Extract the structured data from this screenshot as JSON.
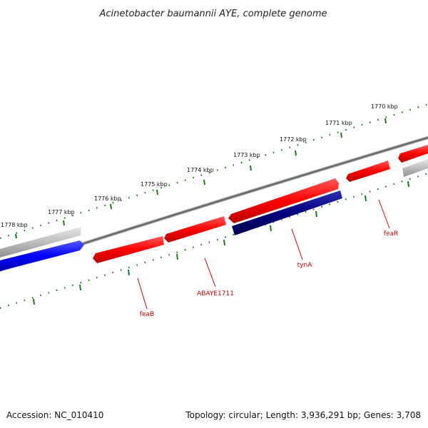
{
  "title": "Acinetobacter baumannii AYE, complete genome",
  "footer": {
    "accession": "Accession: NC_010410",
    "summary": "Topology: circular; Length: 3,936,291 bp; Genes: 3,708"
  },
  "ruler": {
    "ticks": [
      "1778 kbp",
      "1777 kbp",
      "1776 kbp",
      "1775 kbp",
      "1774 kbp",
      "1773 kbp",
      "1772 kbp",
      "1771 kbp",
      "1770 kbp"
    ]
  },
  "genes": [
    {
      "name": "feaB",
      "color": "#ff0000"
    },
    {
      "name": "ABAYE1711",
      "color": "#ff0000"
    },
    {
      "name": "tynA",
      "color": "#000080"
    },
    {
      "name": "feaR",
      "color": "#ff0000"
    }
  ],
  "colors": {
    "forward_gene": "#ff0000",
    "reverse_gene": "#000080",
    "other_gene_blue": "#0000ff",
    "other_gene_grey": "#bbbbbb",
    "backbone": "#777777",
    "ruler_dots": "#1a7a1a",
    "label": "#cc0000"
  }
}
